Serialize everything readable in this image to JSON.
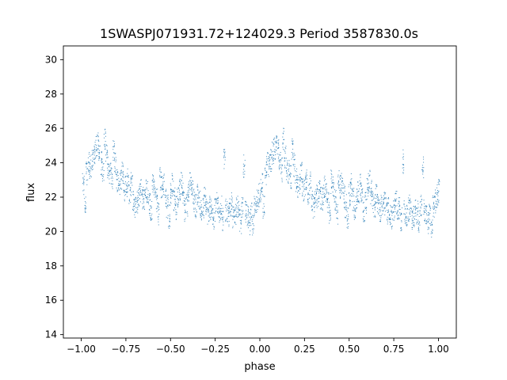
{
  "chart_data": {
    "type": "scatter",
    "title": "1SWASPJ071931.72+124029.3 Period 3587830.0s",
    "xlabel": "phase",
    "ylabel": "flux",
    "xlim": [
      -1.1,
      1.1
    ],
    "ylim": [
      13.8,
      30.8
    ],
    "grid": false,
    "x_ticks": [
      -1.0,
      -0.75,
      -0.5,
      -0.25,
      0.0,
      0.25,
      0.5,
      0.75,
      1.0
    ],
    "x_tick_labels": [
      "−1.00",
      "−0.75",
      "−0.50",
      "−0.25",
      "0.00",
      "0.25",
      "0.50",
      "0.75",
      "1.00"
    ],
    "y_ticks": [
      14,
      16,
      18,
      20,
      22,
      24,
      26,
      28,
      30
    ],
    "y_tick_labels": [
      "14",
      "16",
      "18",
      "20",
      "22",
      "24",
      "26",
      "28",
      "30"
    ],
    "series": [
      {
        "color": "#1f77b4",
        "marker_size": 0.5,
        "points_note": "dense phase-folded light curve, mirrored at phase ±1",
        "x": [
          -0.99,
          -0.98,
          -0.97,
          -0.96,
          -0.95,
          -0.94,
          -0.93,
          -0.92,
          -0.91,
          -0.9,
          -0.89,
          -0.88,
          -0.87,
          -0.86,
          -0.85,
          -0.84,
          -0.83,
          -0.82,
          -0.81,
          -0.8,
          -0.79,
          -0.78,
          -0.77,
          -0.76,
          -0.75,
          -0.74,
          -0.73,
          -0.72,
          -0.71,
          -0.7,
          -0.69,
          -0.68,
          -0.67,
          -0.66,
          -0.65,
          -0.64,
          -0.63,
          -0.62,
          -0.61,
          -0.6,
          -0.59,
          -0.58,
          -0.57,
          -0.56,
          -0.55,
          -0.54,
          -0.53,
          -0.52,
          -0.51,
          -0.5,
          -0.49,
          -0.48,
          -0.47,
          -0.46,
          -0.45,
          -0.44,
          -0.43,
          -0.42,
          -0.41,
          -0.4,
          -0.39,
          -0.38,
          -0.37,
          -0.36,
          -0.35,
          -0.34,
          -0.33,
          -0.32,
          -0.31,
          -0.3,
          -0.29,
          -0.28,
          -0.27,
          -0.26,
          -0.25,
          -0.24,
          -0.23,
          -0.22,
          -0.21,
          -0.2,
          -0.19,
          -0.18,
          -0.17,
          -0.16,
          -0.15,
          -0.14,
          -0.13,
          -0.12,
          -0.11,
          -0.1,
          -0.09,
          -0.08,
          -0.07,
          -0.06,
          -0.05,
          -0.04,
          -0.03,
          -0.02,
          -0.01,
          0.0
        ],
        "y": [
          22.8,
          21.5,
          23.4,
          24.0,
          23.8,
          24.2,
          24.6,
          24.9,
          25.1,
          24.8,
          24.0,
          23.6,
          25.5,
          24.4,
          23.7,
          23.5,
          23.2,
          24.8,
          23.9,
          23.0,
          22.7,
          22.9,
          23.4,
          22.5,
          22.6,
          23.0,
          22.2,
          22.8,
          21.7,
          21.4,
          21.8,
          22.1,
          22.4,
          22.0,
          21.9,
          22.6,
          22.3,
          21.6,
          21.2,
          22.9,
          22.5,
          21.8,
          21.0,
          23.1,
          22.6,
          22.8,
          22.1,
          21.5,
          20.9,
          22.2,
          22.7,
          21.9,
          21.4,
          22.0,
          22.4,
          22.8,
          22.2,
          21.3,
          21.6,
          22.5,
          22.9,
          22.3,
          21.8,
          21.5,
          22.1,
          21.7,
          21.2,
          21.5,
          21.9,
          21.6,
          21.0,
          21.4,
          21.1,
          20.8,
          21.3,
          21.7,
          21.0,
          21.4,
          20.7,
          24.1,
          21.2,
          20.9,
          21.3,
          21.6,
          20.8,
          21.0,
          21.4,
          21.1,
          20.6,
          21.5,
          23.8,
          21.2,
          20.9,
          20.5,
          21.0,
          20.3,
          21.4,
          21.8,
          22.1,
          22.4
        ]
      }
    ]
  }
}
